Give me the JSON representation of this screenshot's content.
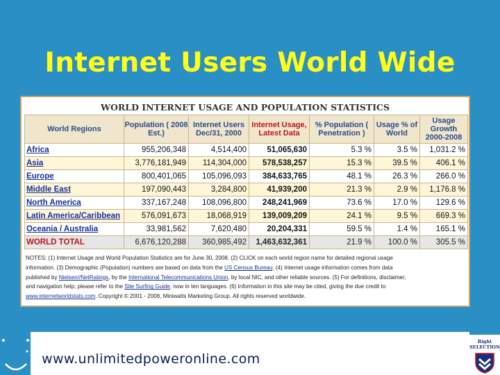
{
  "slide": {
    "title": "Internet Users World Wide",
    "footer_url": "www.unlimitedpoweronline.com"
  },
  "stats": {
    "heading": "WORLD INTERNET USAGE AND POPULATION STATISTICS",
    "columns": [
      "World Regions",
      "Population ( 2008 Est.)",
      "Internet Users Dec/31, 2000",
      "Internet Usage, Latest Data",
      "% Population ( Penetration )",
      "Usage % of World",
      "Usage Growth 2000-2008"
    ],
    "rows": [
      {
        "region": "Africa",
        "population": "955,206,348",
        "users_2000": "4,514,400",
        "usage_latest": "51,065,630",
        "penetration": "5.3 %",
        "usage_world": "3.5 %",
        "growth": "1,031.2 %"
      },
      {
        "region": "Asia",
        "population": "3,776,181,949",
        "users_2000": "114,304,000",
        "usage_latest": "578,538,257",
        "penetration": "15.3 %",
        "usage_world": "39.5 %",
        "growth": "406.1 %"
      },
      {
        "region": "Europe",
        "population": "800,401,065",
        "users_2000": "105,096,093",
        "usage_latest": "384,633,765",
        "penetration": "48.1 %",
        "usage_world": "26.3 %",
        "growth": "266.0 %"
      },
      {
        "region": "Middle East",
        "population": "197,090,443",
        "users_2000": "3,284,800",
        "usage_latest": "41,939,200",
        "penetration": "21.3 %",
        "usage_world": "2.9 %",
        "growth": "1,176.8 %"
      },
      {
        "region": "North America",
        "population": "337,167,248",
        "users_2000": "108,096,800",
        "usage_latest": "248,241,969",
        "penetration": "73.6 %",
        "usage_world": "17.0 %",
        "growth": "129.6 %"
      },
      {
        "region": "Latin America/Caribbean",
        "population": "576,091,673",
        "users_2000": "18,068,919",
        "usage_latest": "139,009,209",
        "penetration": "24.1 %",
        "usage_world": "9.5 %",
        "growth": "669.3 %"
      },
      {
        "region": "Oceania / Australia",
        "population": "33,981,562",
        "users_2000": "7,620,480",
        "usage_latest": "20,204,331",
        "penetration": "59.5 %",
        "usage_world": "1.4 %",
        "growth": "165.1 %"
      }
    ],
    "total": {
      "region": "WORLD TOTAL",
      "population": "6,676,120,288",
      "users_2000": "360,985,492",
      "usage_latest": "1,463,632,361",
      "penetration": "21.9 %",
      "usage_world": "100.0 %",
      "growth": "305.5 %"
    },
    "notes": {
      "l1": "NOTES: (1) Internet Usage and World Population Statistics are for June 30, 2008. (2) CLICK on each world region name for detailed regional usage",
      "l2a": "information. (3) Demographic (Population) numbers are based on data from the",
      "l2link": "US Census Bureau",
      "l2b": ". (4) Internet usage information comes from data",
      "l3a": "published by",
      "l3link1": "Nielsen//NetRatings",
      "l3b": ", by the",
      "l3link2": "International Telecommunications Union",
      "l3c": ", by local NIC, and other reliable sources. (5) For definitions, disclaimer,",
      "l4a": "and navigation help, please refer to the",
      "l4link": "Site Surfing Guide",
      "l4b": ", now in ten languages. (6) Information in this site may be cited, giving the due credit to",
      "l5link": "www.internetworldstats.com",
      "l5b": ". Copyright © 2001 - 2008, Miniwatts Marketing Group. All rights reserved worldwide."
    }
  },
  "logo": {
    "line1": "Right",
    "line2": "SELECTION"
  },
  "colors": {
    "background": "#2a8fc4",
    "title": "#ffff1a",
    "header_fill": "#efe6cc",
    "latest_header": "#c0141a",
    "region_link": "#14309a"
  }
}
